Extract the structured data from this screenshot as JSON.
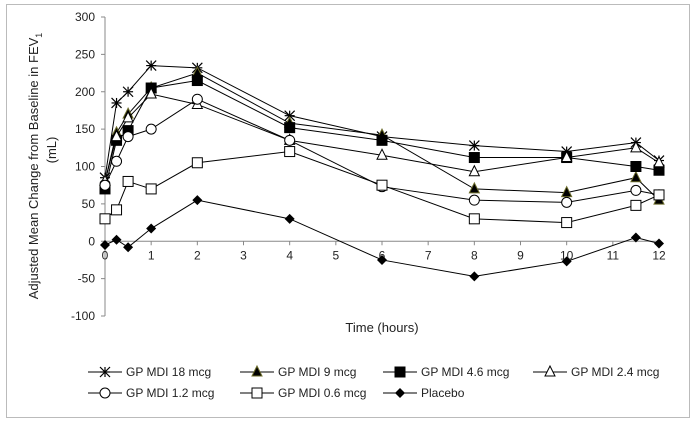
{
  "chart_data": {
    "type": "line",
    "xlabel": "Time (hours)",
    "ylabel": "Adjusted Mean Change from Baseline in FEV1 (mL)",
    "ylabel_main": "Adjusted Mean Change from Baseline in FEV",
    "ylabel_sub": "1",
    "ylabel_unit": "(mL)",
    "xlim": [
      0,
      12
    ],
    "ylim": [
      -100,
      300
    ],
    "xticks": [
      0,
      1,
      2,
      3,
      4,
      5,
      6,
      7,
      8,
      9,
      10,
      11,
      12
    ],
    "yticks": [
      -100,
      -50,
      0,
      50,
      100,
      150,
      200,
      250,
      300
    ],
    "x": [
      0,
      0.25,
      0.5,
      1,
      2,
      4,
      6,
      8,
      10,
      11.5,
      12
    ],
    "legend_position": "bottom",
    "series": [
      {
        "name": "GP MDI 18 mcg",
        "marker": "star",
        "values": [
          85,
          185,
          200,
          235,
          232,
          168,
          140,
          128,
          120,
          132,
          108
        ]
      },
      {
        "name": "GP MDI 9 mcg",
        "marker": "triangle-filled",
        "values": [
          80,
          145,
          170,
          205,
          225,
          158,
          142,
          70,
          65,
          85,
          55
        ]
      },
      {
        "name": "GP MDI 4.6 mcg",
        "marker": "square-filled",
        "values": [
          70,
          135,
          148,
          205,
          215,
          152,
          135,
          112,
          112,
          100,
          95
        ]
      },
      {
        "name": "GP MDI 2.4 mcg",
        "marker": "triangle-open",
        "values": [
          80,
          140,
          165,
          197,
          183,
          135,
          115,
          93,
          112,
          125,
          105
        ]
      },
      {
        "name": "GP MDI 1.2 mcg",
        "marker": "circle-open",
        "values": [
          75,
          107,
          140,
          150,
          190,
          135,
          73,
          55,
          52,
          68,
          62
        ]
      },
      {
        "name": "GP MDI 0.6 mcg",
        "marker": "square-open",
        "values": [
          30,
          42,
          80,
          70,
          105,
          120,
          75,
          30,
          25,
          48,
          62
        ]
      },
      {
        "name": "Placebo",
        "marker": "diamond-filled",
        "values": [
          -5,
          2,
          -8,
          17,
          55,
          30,
          -25,
          -47,
          -27,
          5,
          -3
        ]
      }
    ]
  }
}
